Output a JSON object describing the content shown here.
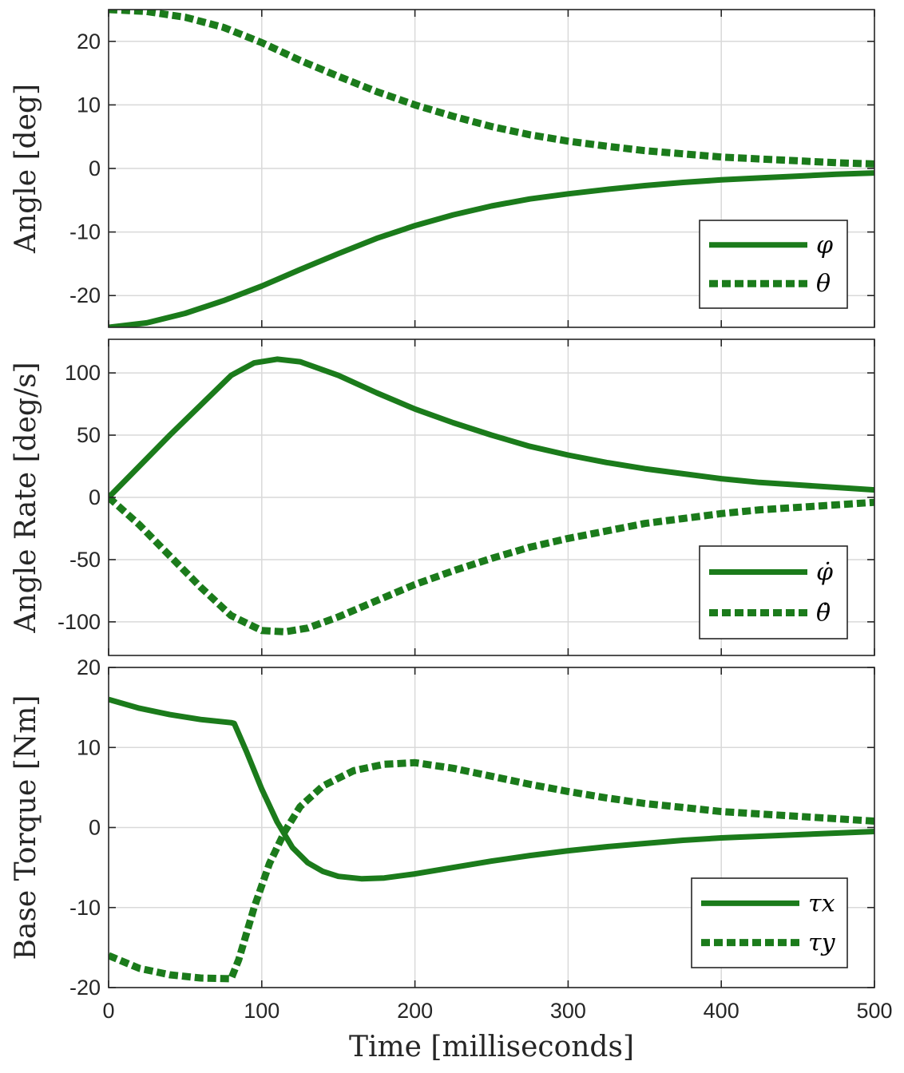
{
  "colors": {
    "series": "#1b7b1b"
  },
  "chart_data": [
    {
      "type": "line",
      "ylabel": "Angle [deg]",
      "xlabel": "",
      "xlim": [
        0,
        500
      ],
      "ylim": [
        -25,
        25
      ],
      "xticks": [
        0,
        100,
        200,
        300,
        400,
        500
      ],
      "yticks": [
        -20,
        -10,
        0,
        10,
        20
      ],
      "grid": true,
      "legend_position": "bottom-right",
      "series": [
        {
          "name": "φ",
          "style": "solid",
          "x": [
            0,
            25,
            50,
            75,
            100,
            125,
            150,
            175,
            200,
            225,
            250,
            275,
            300,
            325,
            350,
            375,
            400,
            425,
            450,
            475,
            500
          ],
          "y": [
            -25,
            -24.3,
            -22.8,
            -20.8,
            -18.5,
            -15.9,
            -13.4,
            -11.0,
            -9.0,
            -7.3,
            -5.9,
            -4.8,
            -4.0,
            -3.3,
            -2.7,
            -2.2,
            -1.8,
            -1.5,
            -1.2,
            -0.9,
            -0.7
          ]
        },
        {
          "name": "θ",
          "style": "dotted",
          "x": [
            0,
            25,
            50,
            75,
            100,
            125,
            150,
            175,
            200,
            225,
            250,
            275,
            300,
            325,
            350,
            375,
            400,
            425,
            450,
            475,
            500
          ],
          "y": [
            25,
            24.7,
            23.8,
            22.2,
            19.8,
            17.0,
            14.5,
            12.1,
            10.0,
            8.2,
            6.6,
            5.3,
            4.3,
            3.5,
            2.8,
            2.3,
            1.8,
            1.5,
            1.2,
            0.9,
            0.7
          ]
        }
      ]
    },
    {
      "type": "line",
      "ylabel": "Angle Rate [deg/s]",
      "xlabel": "",
      "xlim": [
        0,
        500
      ],
      "ylim": [
        -127,
        127
      ],
      "xticks": [
        0,
        100,
        200,
        300,
        400,
        500
      ],
      "yticks": [
        -100,
        -50,
        0,
        50,
        100
      ],
      "grid": true,
      "legend_position": "bottom-right",
      "series": [
        {
          "name": "φ̇",
          "style": "solid",
          "x": [
            0,
            20,
            40,
            60,
            80,
            95,
            110,
            125,
            150,
            175,
            200,
            225,
            250,
            275,
            300,
            325,
            350,
            375,
            400,
            425,
            450,
            475,
            500
          ],
          "y": [
            0,
            25,
            50,
            74,
            98,
            108,
            111,
            109,
            98,
            84,
            71,
            60,
            50,
            41,
            34,
            28,
            23,
            19,
            15,
            12,
            10,
            8,
            6
          ]
        },
        {
          "name": "θ̇",
          "style": "dotted",
          "x": [
            0,
            20,
            40,
            60,
            80,
            100,
            115,
            130,
            150,
            175,
            200,
            225,
            250,
            275,
            300,
            325,
            350,
            375,
            400,
            425,
            450,
            475,
            500
          ],
          "y": [
            0,
            -22,
            -47,
            -72,
            -95,
            -107,
            -108,
            -105,
            -96,
            -83,
            -70,
            -59,
            -49,
            -40,
            -33,
            -27,
            -21,
            -17,
            -13,
            -10,
            -8,
            -6,
            -4
          ]
        }
      ]
    },
    {
      "type": "line",
      "ylabel": "Base Torque [Nm]",
      "xlabel": "Time [milliseconds]",
      "xlim": [
        0,
        500
      ],
      "ylim": [
        -20,
        20
      ],
      "xticks": [
        0,
        100,
        200,
        300,
        400,
        500
      ],
      "yticks": [
        -20,
        -10,
        0,
        10,
        20
      ],
      "grid": true,
      "legend_position": "bottom-right",
      "series": [
        {
          "name": "τx",
          "style": "solid",
          "x": [
            0,
            20,
            40,
            60,
            80,
            82,
            90,
            100,
            110,
            120,
            130,
            140,
            150,
            165,
            180,
            200,
            225,
            250,
            275,
            300,
            325,
            350,
            375,
            400,
            425,
            450,
            475,
            500
          ],
          "y": [
            16,
            14.9,
            14.1,
            13.5,
            13.1,
            13.0,
            9.5,
            4.8,
            0.7,
            -2.5,
            -4.4,
            -5.5,
            -6.1,
            -6.4,
            -6.3,
            -5.8,
            -5.0,
            -4.2,
            -3.5,
            -2.9,
            -2.4,
            -2.0,
            -1.6,
            -1.3,
            -1.1,
            -0.9,
            -0.7,
            -0.5
          ]
        },
        {
          "name": "τy",
          "style": "dotted",
          "x": [
            0,
            20,
            40,
            60,
            80,
            85,
            95,
            105,
            115,
            125,
            140,
            160,
            180,
            200,
            225,
            250,
            275,
            300,
            325,
            350,
            375,
            400,
            425,
            450,
            475,
            500
          ],
          "y": [
            -16,
            -17.6,
            -18.4,
            -18.8,
            -18.9,
            -16.5,
            -10.0,
            -4.5,
            -0.5,
            2.6,
            5.2,
            7.1,
            7.9,
            8.1,
            7.4,
            6.4,
            5.4,
            4.5,
            3.7,
            3.0,
            2.5,
            2.0,
            1.7,
            1.4,
            1.1,
            0.8
          ]
        }
      ]
    }
  ]
}
